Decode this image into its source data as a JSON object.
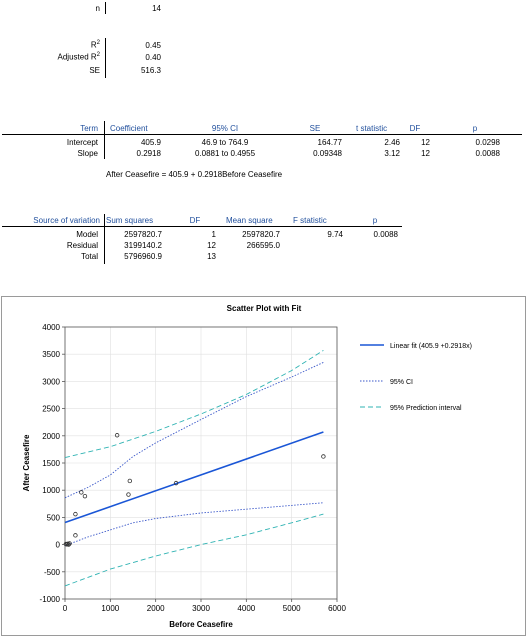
{
  "summary": {
    "n_label": "n",
    "n_value": "14",
    "r2_label": "R",
    "r2_sup": "2",
    "r2_value": "0.45",
    "adj_r2_label": "Adjusted R",
    "adj_r2_sup": "2",
    "adj_r2_value": "0.40",
    "se_label": "SE",
    "se_value": "516.3"
  },
  "coef_table": {
    "headers": [
      "Term",
      "Coefficient",
      "95% CI",
      "SE",
      "t statistic",
      "DF",
      "p"
    ],
    "rows": [
      {
        "term": "Intercept",
        "coef": "405.9",
        "ci": "46.9 to 764.9",
        "se": "164.77",
        "t": "2.46",
        "df": "12",
        "p": "0.0298"
      },
      {
        "term": "Slope",
        "coef": "0.2918",
        "ci": "0.0881 to 0.4955",
        "se": "0.09348",
        "t": "3.12",
        "df": "12",
        "p": "0.0088"
      }
    ]
  },
  "equation": "After Ceasefire = 405.9 + 0.2918Before Ceasefire",
  "anova_table": {
    "headers": [
      "Source of variation",
      "Sum squares",
      "DF",
      "Mean square",
      "F statistic",
      "p"
    ],
    "rows": [
      {
        "source": "Model",
        "ss": "2597820.7",
        "df": "1",
        "ms": "2597820.7",
        "f": "9.74",
        "p": "0.0088"
      },
      {
        "source": "Residual",
        "ss": "3199140.2",
        "df": "12",
        "ms": "266595.0",
        "f": "",
        "p": ""
      },
      {
        "source": "Total",
        "ss": "5796960.9",
        "df": "13",
        "ms": "",
        "f": "",
        "p": ""
      }
    ]
  },
  "chart_data": {
    "type": "scatter",
    "title": "Scatter Plot with Fit",
    "xlabel": "Before Ceasefire",
    "ylabel": "After Ceasefire",
    "xlim": [
      0,
      6000
    ],
    "ylim": [
      -1000,
      4000
    ],
    "x_ticks": [
      "0",
      "1000",
      "2000",
      "3000",
      "4000",
      "5000",
      "6000"
    ],
    "y_ticks": [
      "4000",
      "3500",
      "3000",
      "2500",
      "2000",
      "1500",
      "1000",
      "500",
      "0",
      "-500",
      "-1000"
    ],
    "x_tick_values": [
      0,
      1000,
      2000,
      3000,
      4000,
      5000,
      6000
    ],
    "y_tick_values": [
      4000,
      3500,
      3000,
      2500,
      2000,
      1500,
      1000,
      500,
      0,
      -500,
      -1000
    ],
    "points": [
      {
        "x": 20,
        "y": 10
      },
      {
        "x": 40,
        "y": 5
      },
      {
        "x": 60,
        "y": 15
      },
      {
        "x": 80,
        "y": 0
      },
      {
        "x": 100,
        "y": 20
      },
      {
        "x": 230,
        "y": 170
      },
      {
        "x": 230,
        "y": 560
      },
      {
        "x": 360,
        "y": 960
      },
      {
        "x": 440,
        "y": 890
      },
      {
        "x": 1150,
        "y": 2010
      },
      {
        "x": 1400,
        "y": 920
      },
      {
        "x": 1430,
        "y": 1170
      },
      {
        "x": 2450,
        "y": 1130
      },
      {
        "x": 5700,
        "y": 1620
      }
    ],
    "fit": {
      "intercept": 405.9,
      "slope": 0.2918,
      "x_range": [
        0,
        5700
      ]
    },
    "ci_lower": [
      [
        0,
        -20
      ],
      [
        500,
        140
      ],
      [
        1000,
        270
      ],
      [
        1500,
        400
      ],
      [
        2000,
        480
      ],
      [
        3000,
        580
      ],
      [
        4000,
        650
      ],
      [
        5000,
        720
      ],
      [
        5700,
        770
      ]
    ],
    "ci_upper": [
      [
        0,
        860
      ],
      [
        500,
        1050
      ],
      [
        1000,
        1280
      ],
      [
        1500,
        1620
      ],
      [
        2000,
        1870
      ],
      [
        3000,
        2300
      ],
      [
        4000,
        2720
      ],
      [
        5000,
        3080
      ],
      [
        5700,
        3350
      ]
    ],
    "pi_lower": [
      [
        0,
        -760
      ],
      [
        1000,
        -450
      ],
      [
        2000,
        -210
      ],
      [
        3000,
        0
      ],
      [
        4000,
        180
      ],
      [
        5000,
        400
      ],
      [
        5700,
        560
      ]
    ],
    "pi_upper": [
      [
        0,
        1600
      ],
      [
        1000,
        1800
      ],
      [
        2000,
        2080
      ],
      [
        3000,
        2400
      ],
      [
        4000,
        2760
      ],
      [
        5000,
        3200
      ],
      [
        5700,
        3570
      ]
    ],
    "legend": [
      {
        "label": "Linear fit (405.9  +0.2918x)",
        "style": "solid"
      },
      {
        "label": "95% CI",
        "style": "dotted"
      },
      {
        "label": "95% Prediction interval",
        "style": "dashed"
      }
    ],
    "colors": {
      "fit": "#1a56d6",
      "ci": "#3a57c9",
      "pi": "#2fb3b3",
      "point": "#333333",
      "grid": "#e0e0e0"
    },
    "legend_position": "right",
    "grid": true
  }
}
